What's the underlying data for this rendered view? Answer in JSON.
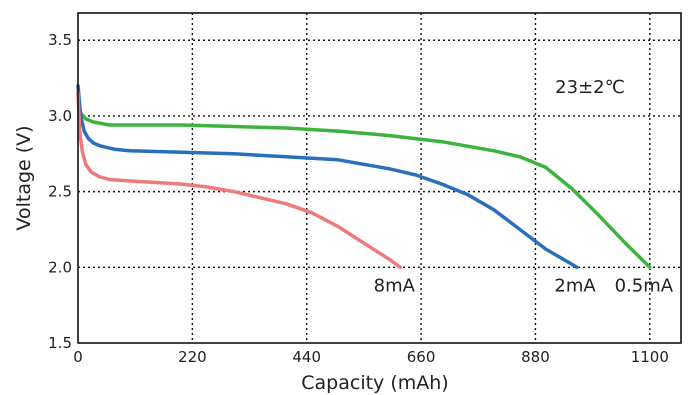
{
  "chart_data": {
    "type": "line",
    "title": "",
    "xlabel": "Capacity (mAh)",
    "ylabel": "Voltage (V)",
    "xlim": [
      0,
      1160
    ],
    "ylim": [
      1.5,
      3.68
    ],
    "x_ticks": [
      0,
      220,
      440,
      660,
      880,
      1100
    ],
    "x_tick_labels": [
      "0",
      "220",
      "440",
      "660",
      "880",
      "1100"
    ],
    "y_ticks": [
      1.5,
      2.0,
      2.5,
      3.0,
      3.5
    ],
    "y_tick_labels": [
      "1.5",
      "2.0",
      "2.5",
      "3.0",
      "3.5"
    ],
    "grid": true,
    "annotation": "23±2℃",
    "series": [
      {
        "name": "0.5mA",
        "color": "#3cb43c",
        "x": [
          0,
          5,
          15,
          30,
          60,
          100,
          200,
          300,
          400,
          500,
          600,
          700,
          800,
          850,
          900,
          950,
          1000,
          1050,
          1100
        ],
        "y": [
          3.15,
          3.02,
          2.98,
          2.96,
          2.94,
          2.94,
          2.94,
          2.93,
          2.92,
          2.9,
          2.87,
          2.83,
          2.77,
          2.73,
          2.66,
          2.52,
          2.35,
          2.17,
          2.0
        ]
      },
      {
        "name": "2mA",
        "color": "#2a6fbc",
        "x": [
          0,
          5,
          12,
          20,
          30,
          45,
          70,
          100,
          200,
          300,
          400,
          500,
          600,
          650,
          700,
          750,
          800,
          850,
          900,
          960
        ],
        "y": [
          3.2,
          3.0,
          2.9,
          2.85,
          2.82,
          2.8,
          2.78,
          2.77,
          2.76,
          2.75,
          2.73,
          2.71,
          2.65,
          2.61,
          2.55,
          2.48,
          2.38,
          2.25,
          2.12,
          2.0
        ]
      },
      {
        "name": "8mA",
        "color": "#ee7b7b",
        "x": [
          0,
          3,
          8,
          15,
          25,
          40,
          60,
          100,
          150,
          200,
          250,
          300,
          350,
          400,
          450,
          500,
          550,
          600,
          620
        ],
        "y": [
          3.15,
          2.9,
          2.77,
          2.68,
          2.63,
          2.6,
          2.58,
          2.57,
          2.56,
          2.55,
          2.53,
          2.5,
          2.46,
          2.42,
          2.36,
          2.27,
          2.16,
          2.05,
          2.0
        ]
      }
    ]
  }
}
